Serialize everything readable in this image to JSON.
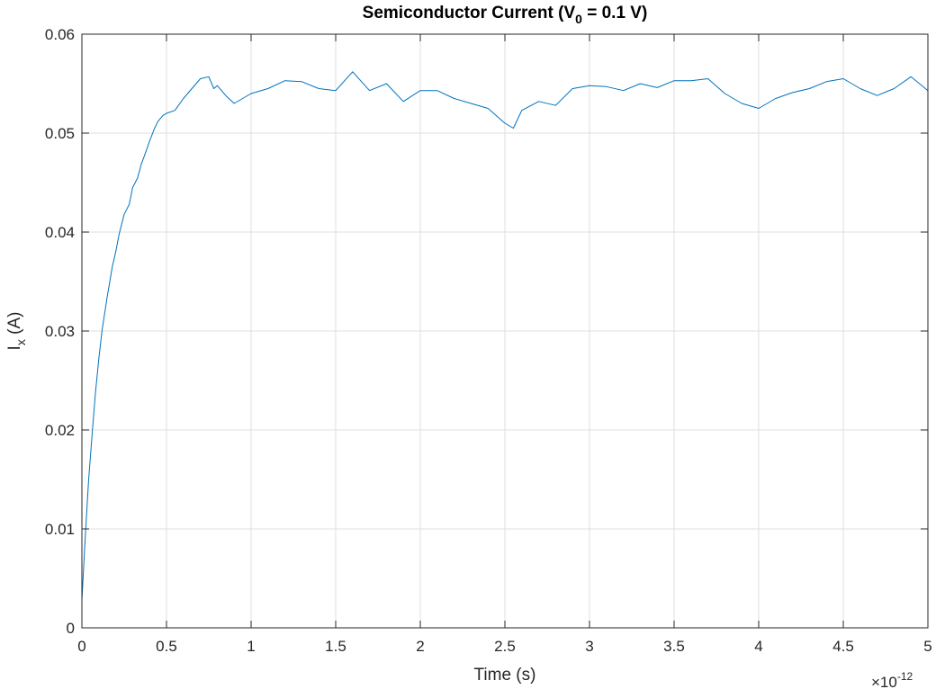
{
  "chart_data": {
    "type": "line",
    "title": {
      "main": "Semiconductor Current (V",
      "sub": "0",
      "rest": " = 0.1 V)"
    },
    "xlabel": "Time (s)",
    "ylabel": {
      "main": "I",
      "sub": "x",
      "rest": " (A)"
    },
    "x_exponent": {
      "prefix": "×10",
      "power": "-12"
    },
    "xlim": [
      0,
      5
    ],
    "ylim": [
      0,
      0.06
    ],
    "x_ticks": [
      "0",
      "0.5",
      "1",
      "1.5",
      "2",
      "2.5",
      "3",
      "3.5",
      "4",
      "4.5",
      "5"
    ],
    "y_ticks": [
      "0",
      "0.01",
      "0.02",
      "0.03",
      "0.04",
      "0.05",
      "0.06"
    ],
    "grid": true,
    "colors": {
      "series": "#0072BD",
      "grid": "#dfdfdf",
      "axis": "#262626"
    },
    "series": [
      {
        "x": [
          0,
          0.02,
          0.04,
          0.06,
          0.08,
          0.1,
          0.12,
          0.15,
          0.18,
          0.2,
          0.22,
          0.25,
          0.28,
          0.3,
          0.33,
          0.35,
          0.38,
          0.4,
          0.43,
          0.45,
          0.48,
          0.5,
          0.55,
          0.6,
          0.65,
          0.7,
          0.75,
          0.78,
          0.8,
          0.85,
          0.9,
          0.95,
          1.0,
          1.1,
          1.2,
          1.3,
          1.4,
          1.5,
          1.6,
          1.7,
          1.8,
          1.9,
          2.0,
          2.1,
          2.2,
          2.3,
          2.4,
          2.5,
          2.55,
          2.6,
          2.7,
          2.8,
          2.9,
          3.0,
          3.1,
          3.2,
          3.3,
          3.4,
          3.5,
          3.6,
          3.7,
          3.8,
          3.9,
          4.0,
          4.1,
          4.2,
          4.3,
          4.4,
          4.5,
          4.6,
          4.7,
          4.8,
          4.9,
          5.0
        ],
        "y": [
          0.0028,
          0.0093,
          0.015,
          0.0195,
          0.0237,
          0.0272,
          0.0302,
          0.0335,
          0.0365,
          0.038,
          0.0398,
          0.0418,
          0.0428,
          0.0445,
          0.0455,
          0.0468,
          0.0482,
          0.0492,
          0.0505,
          0.0512,
          0.0518,
          0.052,
          0.0523,
          0.0535,
          0.0545,
          0.0555,
          0.0557,
          0.0545,
          0.0548,
          0.0538,
          0.053,
          0.0535,
          0.054,
          0.0545,
          0.0553,
          0.0552,
          0.0545,
          0.0543,
          0.0562,
          0.0543,
          0.055,
          0.0532,
          0.0543,
          0.0543,
          0.0535,
          0.053,
          0.0525,
          0.051,
          0.0505,
          0.0523,
          0.0532,
          0.0528,
          0.0545,
          0.0548,
          0.0547,
          0.0543,
          0.055,
          0.0546,
          0.0553,
          0.0553,
          0.0555,
          0.054,
          0.053,
          0.0525,
          0.0535,
          0.0541,
          0.0545,
          0.0552,
          0.0555,
          0.0545,
          0.0538,
          0.0545,
          0.0557,
          0.0543
        ]
      }
    ]
  }
}
